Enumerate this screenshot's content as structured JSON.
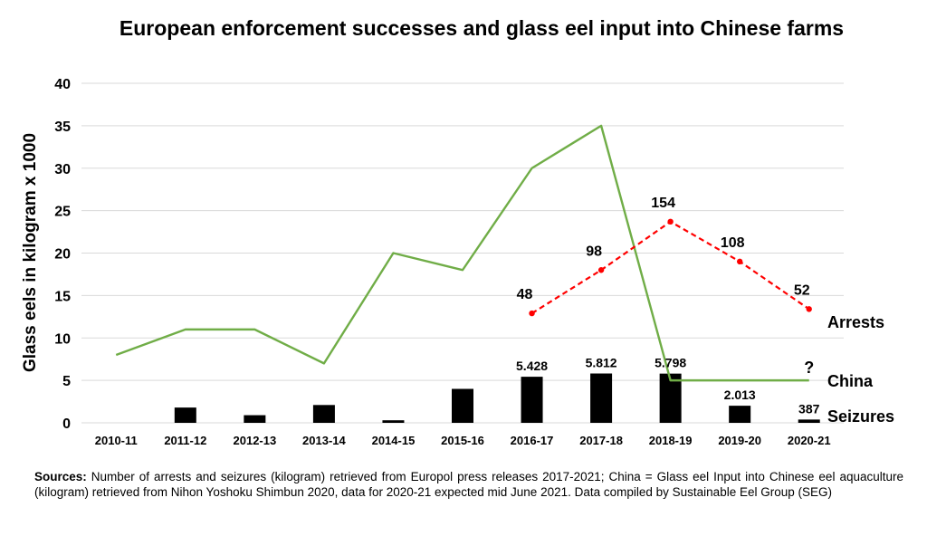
{
  "chart_data": {
    "type": "bar",
    "title": "European enforcement successes and glass eel input into Chinese farms",
    "ylabel": "Glass eels in kilogram x 1000",
    "ylim": [
      0,
      40
    ],
    "yticks": [
      0,
      5,
      10,
      15,
      20,
      25,
      30,
      35,
      40
    ],
    "grid": true,
    "categories": [
      "2010-11",
      "2011-12",
      "2012-13",
      "2013-14",
      "2014-15",
      "2015-16",
      "2016-17",
      "2017-18",
      "2018-19",
      "2019-20",
      "2020-21"
    ],
    "series": [
      {
        "name": "Seizures",
        "type": "bar",
        "color": "#000000",
        "values": [
          null,
          1.8,
          0.9,
          2.1,
          0.3,
          4.0,
          5.428,
          5.812,
          5.798,
          2.013,
          0.387
        ],
        "labels": [
          null,
          null,
          null,
          null,
          null,
          null,
          "5.428",
          "5.812",
          "5.798",
          "2.013",
          "387"
        ]
      },
      {
        "name": "China",
        "type": "line",
        "color": "#70ad47",
        "values": [
          8,
          11,
          11,
          7,
          20,
          18,
          30,
          35,
          5,
          5,
          5
        ],
        "labels": [
          null,
          null,
          null,
          null,
          null,
          null,
          null,
          null,
          null,
          null,
          "?"
        ]
      },
      {
        "name": "Arrests",
        "type": "line",
        "style": "dashed",
        "color": "#ff0000",
        "values": [
          null,
          null,
          null,
          null,
          null,
          null,
          12.9,
          18.0,
          23.7,
          19.0,
          13.4
        ],
        "labels": [
          null,
          null,
          null,
          null,
          null,
          null,
          "48",
          "98",
          "154",
          "108",
          "52"
        ]
      }
    ]
  },
  "sources": {
    "label": "Sources:",
    "text": " Number of arrests and seizures (kilogram) retrieved from Europol press releases 2017-2021; China = Glass eel Input into Chinese eel aquaculture (kilogram) retrieved from Nihon Yoshoku Shimbun 2020, data for 2020-21 expected mid June 2021. Data compiled by Sustainable Eel Group (SEG)"
  }
}
